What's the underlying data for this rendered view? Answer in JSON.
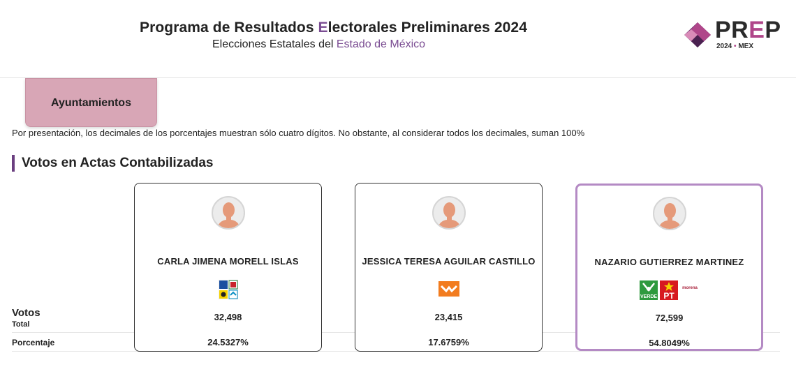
{
  "header": {
    "title_before": "Programa de Resultados ",
    "title_accent": "E",
    "title_after": "lectorales Preliminares 2024",
    "subtitle_before": "Elecciones Estatales del ",
    "subtitle_accent": "Estado de México",
    "logo_text_a": "PR",
    "logo_text_e": "E",
    "logo_text_b": "P",
    "logo_year": "2024",
    "logo_dot": "•",
    "logo_region": "MEX"
  },
  "tab": {
    "label": "Ayuntamientos"
  },
  "note": "Por presentación, los decimales de los porcentajes muestran sólo cuatro dígitos. No obstante, al considerar todos los decimales, suman 100%",
  "section_title": "Votos en Actas Contabilizadas",
  "row_labels": {
    "votos": "Votos",
    "total": "Total",
    "porcentaje": "Porcentaje"
  },
  "candidates": [
    {
      "name": "CARLA JIMENA MORELL ISLAS",
      "votes": "32,498",
      "percentage": "24.5327%",
      "parties": [
        "pan-prd-pri-coalition-logo"
      ]
    },
    {
      "name": "JESSICA TERESA AGUILAR CASTILLO",
      "votes": "23,415",
      "percentage": "17.6759%",
      "parties": [
        "movimiento-ciudadano-logo"
      ]
    },
    {
      "name": "NAZARIO GUTIERREZ MARTINEZ",
      "votes": "72,599",
      "percentage": "54.8049%",
      "parties": [
        "verde-logo",
        "pt-logo",
        "morena-logo"
      ]
    }
  ],
  "party_text": {
    "verde": "VERDE",
    "pt": "PT",
    "morena": "morena"
  },
  "colors": {
    "accent": "#7a4c92",
    "tab": "#d8a6b6",
    "winner_border": "#b48ac4",
    "logo_magenta": "#b0468a"
  }
}
